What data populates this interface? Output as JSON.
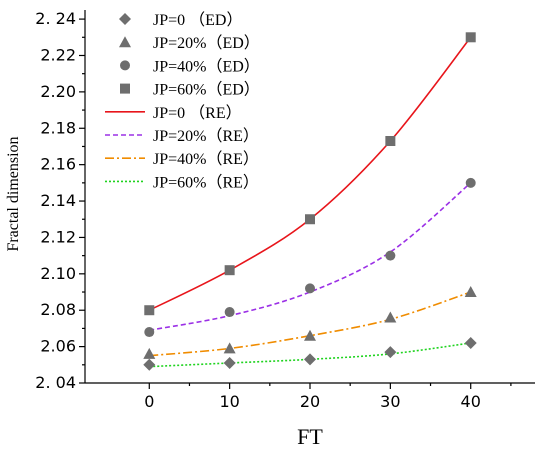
{
  "chart_data": {
    "type": "scatter",
    "xlabel": "FT",
    "ylabel": "Fractal dimension",
    "xlim": [
      -8,
      48
    ],
    "ylim": [
      2.04,
      2.245
    ],
    "x_ticks": [
      0,
      10,
      20,
      30,
      40
    ],
    "y_ticks": [
      2.04,
      2.06,
      2.08,
      2.1,
      2.12,
      2.14,
      2.16,
      2.18,
      2.2,
      2.22,
      2.24
    ],
    "y_tick_labels": [
      "2. 04",
      "2.06",
      "2.08",
      "2.10",
      "2.12",
      "2.14",
      "2.16",
      "2.18",
      "2.20",
      "2.22",
      "2. 24"
    ],
    "grid": false,
    "legend_position": "top-left",
    "x": [
      0,
      10,
      20,
      30,
      40
    ],
    "series": [
      {
        "name": "JP=0 （ED）",
        "kind": "points",
        "marker": "diamond",
        "color": "#6e6e6e",
        "values": [
          2.05,
          2.051,
          2.053,
          2.057,
          2.062
        ]
      },
      {
        "name": "JP=20%（ED）",
        "kind": "points",
        "marker": "triangle",
        "color": "#6e6e6e",
        "values": [
          2.056,
          2.059,
          2.066,
          2.076,
          2.09
        ]
      },
      {
        "name": "JP=40%（ED）",
        "kind": "points",
        "marker": "circle",
        "color": "#6e6e6e",
        "values": [
          2.068,
          2.079,
          2.092,
          2.11,
          2.15
        ]
      },
      {
        "name": "JP=60%（ED）",
        "kind": "points",
        "marker": "square",
        "color": "#6e6e6e",
        "values": [
          2.08,
          2.102,
          2.13,
          2.173,
          2.23
        ]
      },
      {
        "name": "JP=0  （RE）",
        "kind": "curve",
        "dash": "",
        "color": "#e8151b",
        "values": [
          2.08,
          2.102,
          2.13,
          2.173,
          2.23
        ]
      },
      {
        "name": "JP=20%（RE）",
        "kind": "curve",
        "dash": "5,3",
        "color": "#9b30e6",
        "values": [
          2.069,
          2.077,
          2.09,
          2.112,
          2.15
        ]
      },
      {
        "name": "JP=40%（RE）",
        "kind": "curve",
        "dash": "9,3,2,3",
        "color": "#f08c00",
        "values": [
          2.055,
          2.059,
          2.066,
          2.075,
          2.09
        ]
      },
      {
        "name": "JP=60%（RE）",
        "kind": "curve",
        "dash": "2,2",
        "color": "#1fd31f",
        "values": [
          2.049,
          2.051,
          2.053,
          2.056,
          2.062
        ]
      }
    ]
  }
}
